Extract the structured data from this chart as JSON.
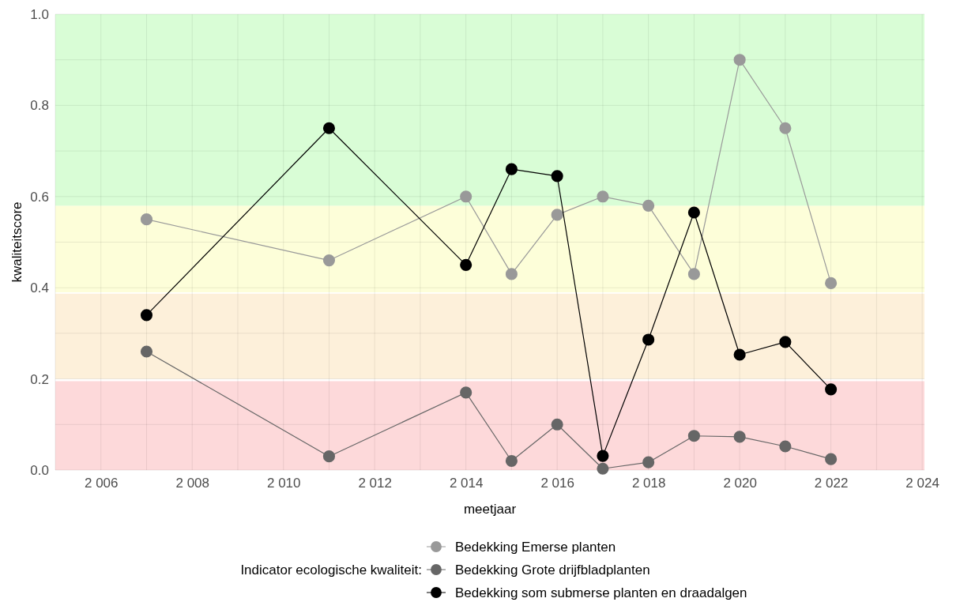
{
  "chart_data": {
    "type": "line",
    "xlabel": "meetjaar",
    "ylabel": "kwaliteitscore",
    "legend_title": "Indicator ecologische kwaliteit:",
    "legend": "bottom",
    "grid": true,
    "marker": "circle",
    "line_style": "solid",
    "xlim": [
      2005,
      2024.05
    ],
    "xticks": [
      {
        "value": 2005,
        "label": null
      },
      {
        "value": 2006,
        "label": "2 006"
      },
      {
        "value": 2007,
        "label": null
      },
      {
        "value": 2008,
        "label": "2 008"
      },
      {
        "value": 2009,
        "label": null
      },
      {
        "value": 2010,
        "label": "2 010"
      },
      {
        "value": 2011,
        "label": null
      },
      {
        "value": 2012,
        "label": "2 012"
      },
      {
        "value": 2013,
        "label": null
      },
      {
        "value": 2014,
        "label": "2 014"
      },
      {
        "value": 2015,
        "label": null
      },
      {
        "value": 2016,
        "label": "2 016"
      },
      {
        "value": 2017,
        "label": null
      },
      {
        "value": 2018,
        "label": "2 018"
      },
      {
        "value": 2019,
        "label": null
      },
      {
        "value": 2020,
        "label": "2 020"
      },
      {
        "value": 2021,
        "label": null
      },
      {
        "value": 2022,
        "label": "2 022"
      },
      {
        "value": 2023,
        "label": null
      },
      {
        "value": 2024,
        "label": "2 024"
      }
    ],
    "ylim": [
      0,
      1
    ],
    "yticks": [
      {
        "value": 0,
        "label": "0.0"
      },
      {
        "value": 0.1,
        "label": null
      },
      {
        "value": 0.2,
        "label": "0.2"
      },
      {
        "value": 0.3,
        "label": null
      },
      {
        "value": 0.4,
        "label": "0.4"
      },
      {
        "value": 0.5,
        "label": null
      },
      {
        "value": 0.6,
        "label": "0.6"
      },
      {
        "value": 0.7,
        "label": null
      },
      {
        "value": 0.8,
        "label": "0.8"
      },
      {
        "value": 0.9,
        "label": null
      },
      {
        "value": 1,
        "label": "1.0"
      }
    ],
    "bands": [
      {
        "axis": "y",
        "from": 0,
        "to": 0.195,
        "color": "#fdd9da"
      },
      {
        "axis": "y",
        "from": 0.2,
        "to": 0.387,
        "color": "#fdf0da"
      },
      {
        "axis": "y",
        "from": 0.39,
        "to": 0.58,
        "color": "#fdfed9"
      },
      {
        "axis": "y",
        "from": 0.58,
        "to": 1,
        "color": "#d9fdd6"
      }
    ],
    "x": [
      2007,
      2011,
      2014,
      2015,
      2016,
      2017,
      2018,
      2019,
      2020,
      2021,
      2022
    ],
    "series": [
      {
        "name": "Bedekking Emerse planten",
        "color": "#999999",
        "values": [
          0.55,
          0.46,
          0.6,
          0.43,
          0.56,
          0.6,
          0.58,
          0.43,
          0.9,
          0.75,
          0.41
        ]
      },
      {
        "name": "Bedekking Grote drijfbladplanten",
        "color": "#666666",
        "values": [
          0.26,
          0.03,
          0.17,
          0.02,
          0.1,
          0.003,
          0.017,
          0.075,
          0.073,
          0.052,
          0.024
        ]
      },
      {
        "name": "Bedekking som submerse planten en draadalgen",
        "color": "#000000",
        "values": [
          0.34,
          0.75,
          0.45,
          0.66,
          0.645,
          0.031,
          0.286,
          0.565,
          0.253,
          0.281,
          0.177
        ]
      }
    ]
  }
}
